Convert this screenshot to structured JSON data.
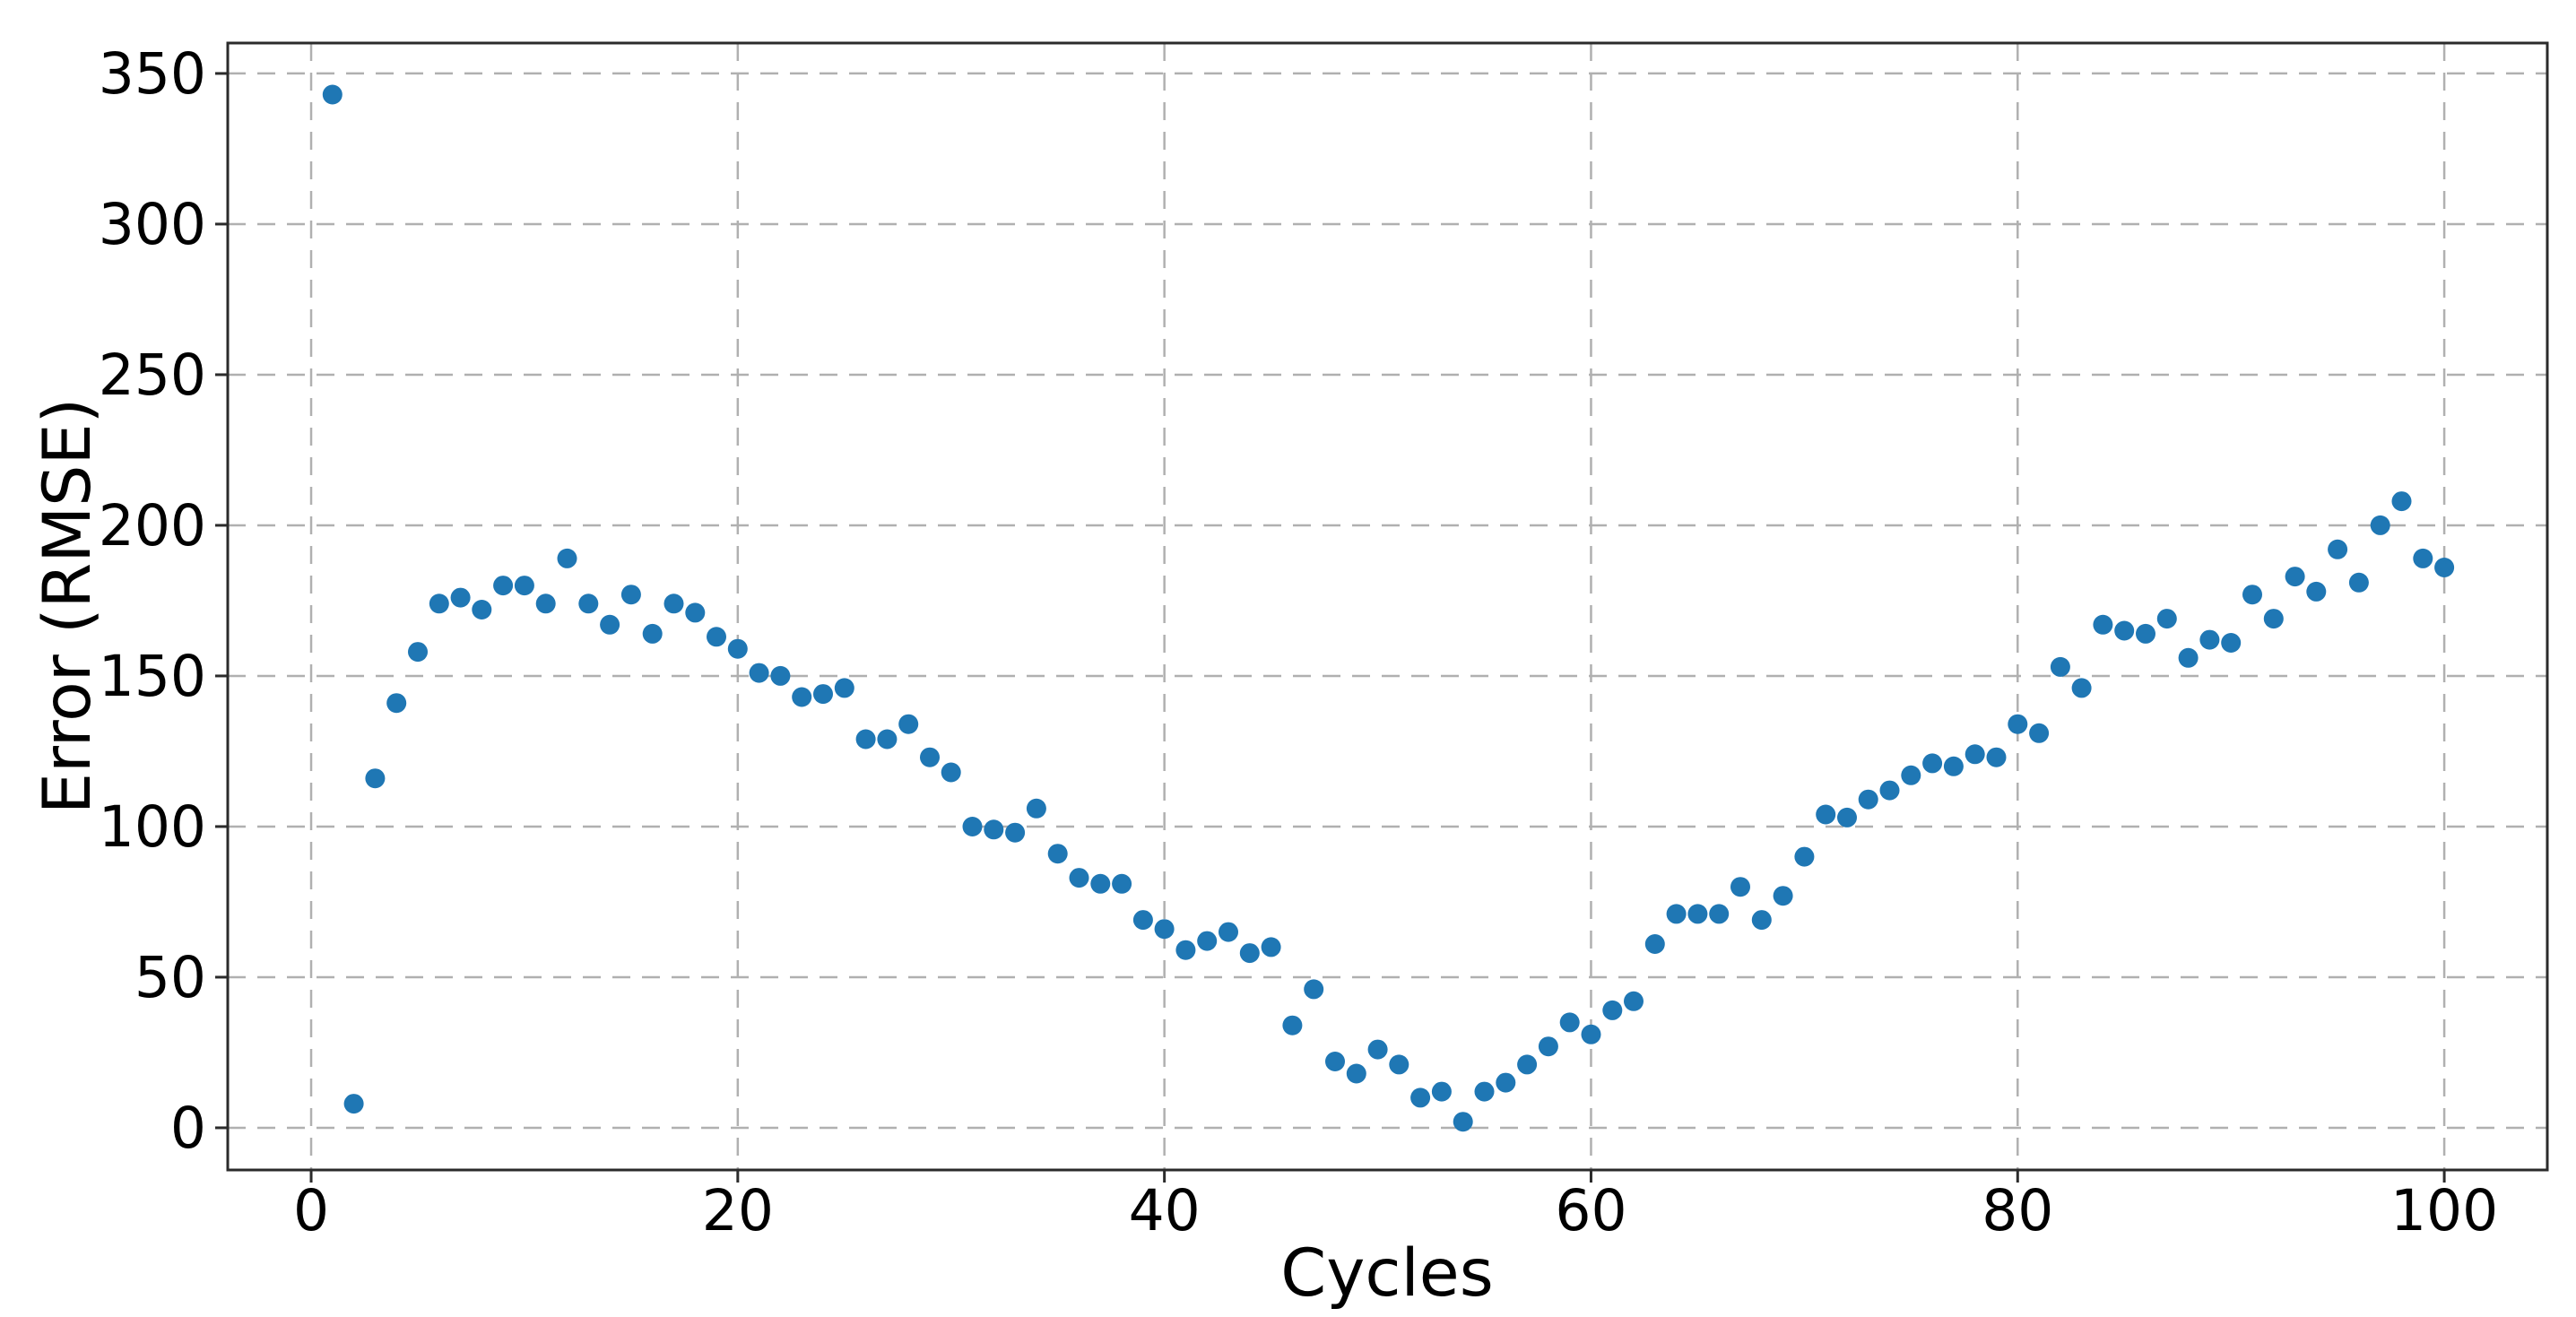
{
  "chart_data": {
    "type": "scatter",
    "title": "",
    "xlabel": "Cycles",
    "ylabel": "Error (RMSE)",
    "x": [
      1,
      2,
      3,
      4,
      5,
      6,
      7,
      8,
      9,
      10,
      11,
      12,
      13,
      14,
      15,
      16,
      17,
      18,
      19,
      20,
      21,
      22,
      23,
      24,
      25,
      26,
      27,
      28,
      29,
      30,
      31,
      32,
      33,
      34,
      35,
      36,
      37,
      38,
      39,
      40,
      41,
      42,
      43,
      44,
      45,
      46,
      47,
      48,
      49,
      50,
      51,
      52,
      53,
      54,
      55,
      56,
      57,
      58,
      59,
      60,
      61,
      62,
      63,
      64,
      65,
      66,
      67,
      68,
      69,
      70,
      71,
      72,
      73,
      74,
      75,
      76,
      77,
      78,
      79,
      80,
      81,
      82,
      83,
      84,
      85,
      86,
      87,
      88,
      89,
      90,
      91,
      92,
      93,
      94,
      95,
      96,
      97,
      98,
      99,
      100
    ],
    "y": [
      343,
      8,
      116,
      141,
      158,
      174,
      176,
      172,
      180,
      180,
      174,
      189,
      174,
      167,
      177,
      164,
      174,
      171,
      163,
      159,
      151,
      150,
      143,
      144,
      146,
      129,
      129,
      134,
      123,
      118,
      100,
      99,
      98,
      106,
      91,
      83,
      81,
      81,
      69,
      66,
      59,
      62,
      65,
      58,
      60,
      34,
      46,
      22,
      18,
      26,
      21,
      10,
      12,
      2,
      12,
      15,
      21,
      27,
      35,
      31,
      39,
      42,
      61,
      71,
      71,
      71,
      80,
      69,
      77,
      90,
      104,
      103,
      109,
      112,
      117,
      121,
      120,
      124,
      123,
      134,
      131,
      153,
      146,
      167,
      165,
      164,
      169,
      156,
      162,
      161,
      177,
      169,
      183,
      178,
      192,
      181,
      200,
      208,
      189,
      186
    ],
    "xlim": [
      -3.91,
      104.83
    ],
    "ylim": [
      -14.0,
      360.1
    ],
    "xticks": [
      0,
      20,
      40,
      60,
      80,
      100
    ],
    "yticks": [
      0,
      50,
      100,
      150,
      200,
      250,
      300,
      350
    ],
    "grid": true,
    "grid_linestyle": "dashed",
    "legend_position": "none",
    "marker_color": "#1f77b4",
    "marker_radius": 11,
    "grid_color": "#b0b0b0",
    "spine_color": "#2b2b2b",
    "tick_color": "#2b2b2b",
    "text_color": "#000000"
  }
}
